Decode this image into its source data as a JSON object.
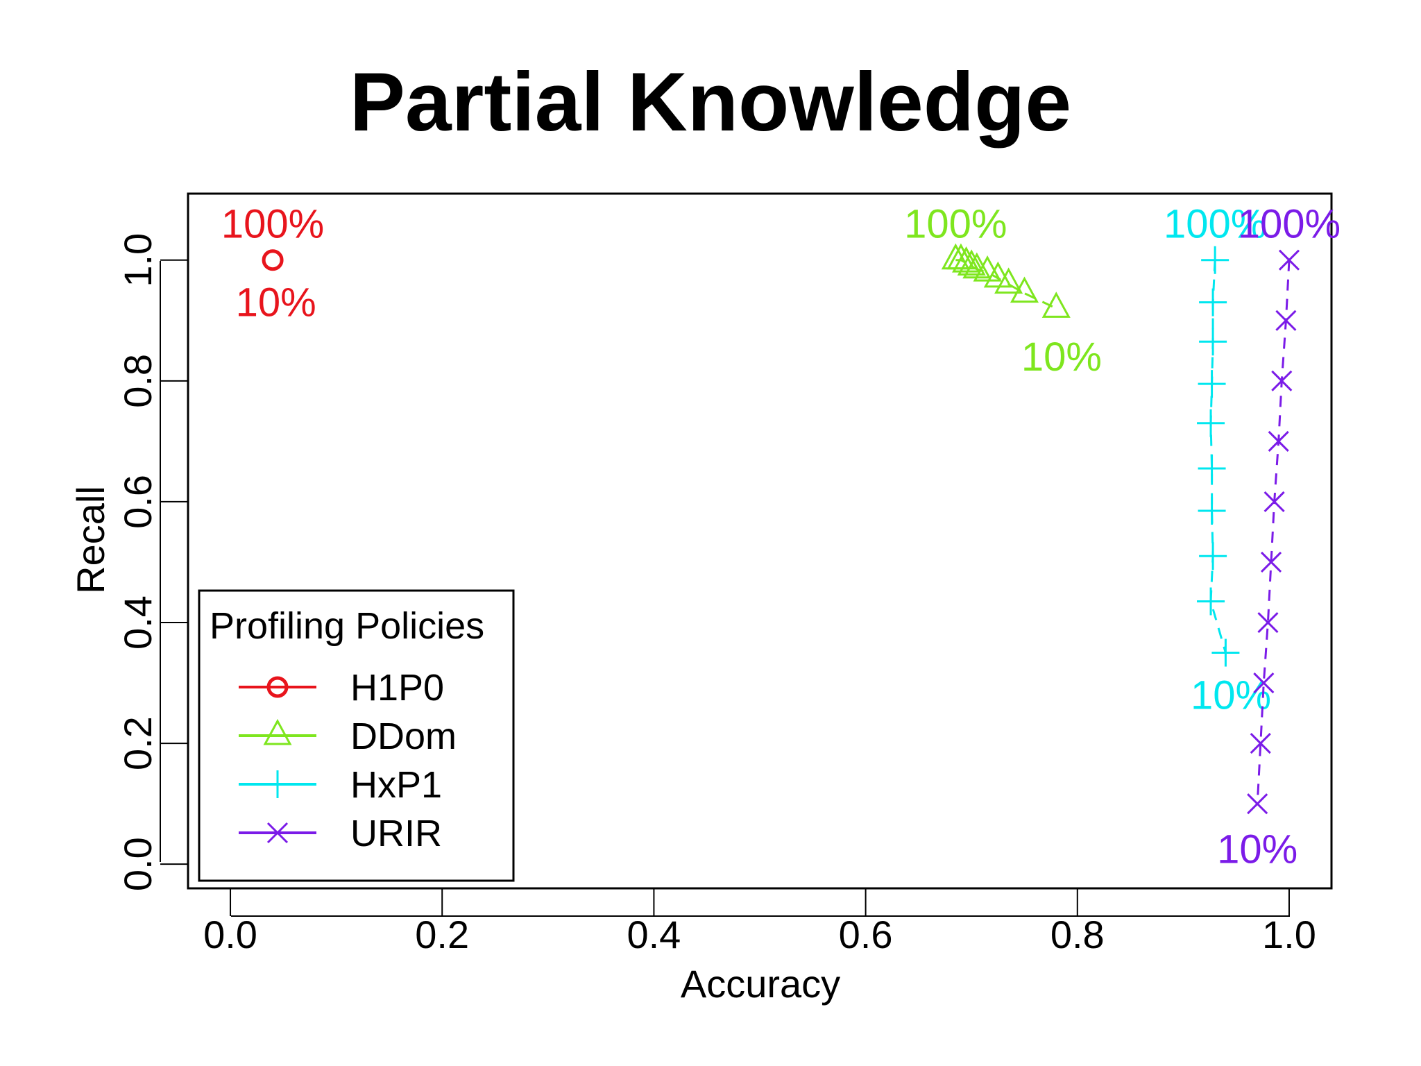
{
  "title": "Partial Knowledge",
  "chart_data": {
    "type": "scatter",
    "title": "Partial Knowledge",
    "xlabel": "Accuracy",
    "ylabel": "Recall",
    "xlim": [
      -0.04,
      1.04
    ],
    "ylim": [
      -0.04,
      1.11
    ],
    "xticks": [
      0.0,
      0.2,
      0.4,
      0.6,
      0.8,
      1.0
    ],
    "xtick_labels": [
      "0.0",
      "0.2",
      "0.4",
      "0.6",
      "0.8",
      "1.0"
    ],
    "yticks": [
      0.0,
      0.2,
      0.4,
      0.6,
      0.8,
      1.0
    ],
    "ytick_labels": [
      "0.0",
      "0.2",
      "0.4",
      "0.6",
      "0.8",
      "1.0"
    ],
    "grid": false,
    "legend": {
      "title": "Profiling Policies",
      "placement": "bottom-left"
    },
    "series": [
      {
        "name": "H1P0",
        "color": "#e8141c",
        "marker": "circle",
        "points": [
          [
            0.04,
            1.0
          ]
        ],
        "labels": [
          {
            "text": "100%",
            "x": 0.04,
            "y": 1.06,
            "anchor": "middle"
          },
          {
            "text": "10%",
            "x": 0.043,
            "y": 0.93,
            "anchor": "middle"
          }
        ]
      },
      {
        "name": "DDom",
        "color": "#7ee61e",
        "marker": "triangle",
        "points": [
          [
            0.685,
            1.0
          ],
          [
            0.69,
            1.0
          ],
          [
            0.695,
            0.995
          ],
          [
            0.7,
            0.99
          ],
          [
            0.705,
            0.985
          ],
          [
            0.715,
            0.98
          ],
          [
            0.725,
            0.97
          ],
          [
            0.735,
            0.96
          ],
          [
            0.75,
            0.945
          ],
          [
            0.78,
            0.92
          ]
        ],
        "labels": [
          {
            "text": "100%",
            "x": 0.685,
            "y": 1.06,
            "anchor": "middle"
          },
          {
            "text": "10%",
            "x": 0.785,
            "y": 0.84,
            "anchor": "middle"
          }
        ]
      },
      {
        "name": "HxP1",
        "color": "#00e7ef",
        "marker": "plus",
        "points": [
          [
            0.93,
            1.0
          ],
          [
            0.928,
            0.93
          ],
          [
            0.928,
            0.865
          ],
          [
            0.927,
            0.795
          ],
          [
            0.926,
            0.73
          ],
          [
            0.927,
            0.655
          ],
          [
            0.927,
            0.585
          ],
          [
            0.928,
            0.51
          ],
          [
            0.926,
            0.435
          ],
          [
            0.94,
            0.35
          ]
        ],
        "labels": [
          {
            "text": "100%",
            "x": 0.93,
            "y": 1.06,
            "anchor": "middle"
          },
          {
            "text": "10%",
            "x": 0.945,
            "y": 0.28,
            "anchor": "middle"
          }
        ]
      },
      {
        "name": "URIR",
        "color": "#7b1be8",
        "marker": "cross",
        "points": [
          [
            1.0,
            1.0
          ],
          [
            0.997,
            0.9
          ],
          [
            0.993,
            0.8
          ],
          [
            0.99,
            0.7
          ],
          [
            0.986,
            0.6
          ],
          [
            0.983,
            0.5
          ],
          [
            0.98,
            0.4
          ],
          [
            0.976,
            0.3
          ],
          [
            0.973,
            0.2
          ],
          [
            0.97,
            0.1
          ]
        ],
        "labels": [
          {
            "text": "100%",
            "x": 1.0,
            "y": 1.06,
            "anchor": "middle"
          },
          {
            "text": "10%",
            "x": 0.97,
            "y": 0.025,
            "anchor": "middle"
          }
        ]
      }
    ]
  }
}
